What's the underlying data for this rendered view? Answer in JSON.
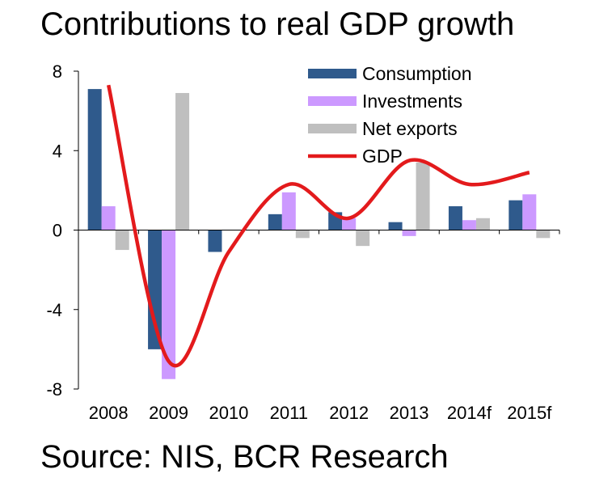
{
  "title": "Contributions to real GDP growth",
  "source": "Source: NIS, BCR Research",
  "chart_data": {
    "type": "bar",
    "categories": [
      "2008",
      "2009",
      "2010",
      "2011",
      "2012",
      "2013",
      "2014f",
      "2015f"
    ],
    "ylim": [
      -8,
      8
    ],
    "yticks": [
      "8",
      "4",
      "0",
      "-4",
      "-8"
    ],
    "ytick_values": [
      8,
      4,
      0,
      -4,
      -8
    ],
    "grid": false,
    "legend_position": "top-right",
    "series": [
      {
        "name": "Consumption",
        "type": "bar",
        "color": "#2f5a8c",
        "values": [
          7.1,
          -6.0,
          -1.1,
          0.8,
          0.9,
          0.4,
          1.2,
          1.5
        ]
      },
      {
        "name": "Investments",
        "type": "bar",
        "color": "#cc99ff",
        "values": [
          1.2,
          -7.5,
          0.0,
          1.9,
          0.6,
          -0.3,
          0.5,
          1.8
        ]
      },
      {
        "name": "Net exports",
        "type": "bar",
        "color": "#bfbfbf",
        "values": [
          -1.0,
          6.9,
          0.0,
          -0.4,
          -0.8,
          3.4,
          0.6,
          -0.4
        ]
      },
      {
        "name": "GDP",
        "type": "line",
        "color": "#e31a1c",
        "values": [
          7.3,
          -6.6,
          -1.1,
          2.3,
          0.6,
          3.5,
          2.3,
          2.9
        ]
      }
    ]
  }
}
